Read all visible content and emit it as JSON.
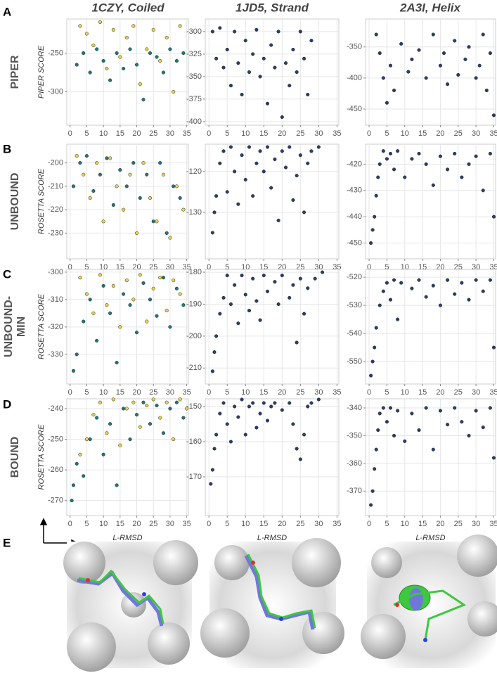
{
  "column_titles": [
    "1CZY, Coiled",
    "1JD5, Strand",
    "2A3I, Helix"
  ],
  "row_labels": [
    [
      "PIPER"
    ],
    [
      "UNBOUND"
    ],
    [
      "UNBOUND-",
      "MIN"
    ],
    [
      "BOUND"
    ]
  ],
  "panel_labels": [
    "A",
    "B",
    "C",
    "D",
    "E"
  ],
  "chart_data": [
    {
      "type": "scatter",
      "ylabel": "PIPER SCORE",
      "xlim": [
        -1,
        35.5
      ],
      "xticks": [
        0,
        5,
        10,
        15,
        20,
        25,
        30,
        35
      ],
      "ylim": [
        -343,
        -206
      ],
      "yticks": [
        -250,
        -300
      ],
      "grid": true,
      "series": [
        {
          "color": "#e8d44d",
          "x": [
            3,
            5,
            7,
            9,
            11,
            13,
            15,
            17,
            19,
            21,
            23,
            25,
            27,
            29,
            31,
            33
          ],
          "values": [
            -215,
            -225,
            -240,
            -210,
            -270,
            -220,
            -255,
            -230,
            -215,
            -290,
            -245,
            -220,
            -260,
            -230,
            -300,
            -215
          ]
        },
        {
          "color": "#217a78",
          "x": [
            2,
            4,
            6,
            8,
            10,
            12,
            14,
            16,
            18,
            20,
            22,
            24,
            26,
            28,
            30,
            32,
            34
          ],
          "values": [
            -265,
            -250,
            -275,
            -245,
            -260,
            -285,
            -250,
            -270,
            -245,
            -265,
            -310,
            -250,
            -255,
            -275,
            -245,
            -260,
            -250
          ]
        }
      ]
    },
    {
      "type": "scatter",
      "xlim": [
        -1,
        35.5
      ],
      "xticks": [
        0,
        5,
        10,
        15,
        20,
        25,
        30,
        35
      ],
      "ylim": [
        -404,
        -286
      ],
      "yticks": [
        -300,
        -325,
        -350,
        -375,
        -400
      ],
      "grid": true,
      "series": [
        {
          "color": "#2b3f6b",
          "x": [
            1,
            2,
            3,
            4,
            5,
            6,
            7,
            8,
            9,
            10,
            11,
            12,
            13,
            14,
            15,
            16,
            17,
            18,
            19,
            20,
            21,
            22,
            23,
            24,
            25,
            26,
            27,
            28
          ],
          "values": [
            -300,
            -330,
            -296,
            -340,
            -320,
            -360,
            -300,
            -335,
            -370,
            -310,
            -345,
            -325,
            -298,
            -350,
            -330,
            -380,
            -315,
            -340,
            -300,
            -395,
            -335,
            -360,
            -320,
            -345,
            -300,
            -330,
            -370,
            -310
          ]
        }
      ]
    },
    {
      "type": "scatter",
      "xlim": [
        -1,
        35.5
      ],
      "xticks": [
        0,
        5,
        10,
        15,
        20,
        25,
        30,
        35
      ],
      "ylim": [
        -476,
        -305
      ],
      "yticks": [
        -350,
        -400,
        -450
      ],
      "grid": true,
      "series": [
        {
          "color": "#2b3f6b",
          "x": [
            2,
            3,
            4,
            5,
            6,
            7,
            9,
            11,
            12,
            14,
            16,
            18,
            20,
            21,
            22,
            24,
            25,
            27,
            28,
            30,
            31,
            32,
            33,
            34,
            35
          ],
          "values": [
            -330,
            -360,
            -400,
            -440,
            -380,
            -420,
            -345,
            -390,
            -370,
            -355,
            -400,
            -330,
            -380,
            -360,
            -410,
            -340,
            -395,
            -370,
            -350,
            -400,
            -380,
            -330,
            -420,
            -360,
            -460
          ]
        }
      ]
    },
    {
      "type": "scatter",
      "ylabel": "ROSETTA SCORE",
      "xlim": [
        -1,
        35.5
      ],
      "xticks": [
        0,
        5,
        10,
        15,
        20,
        25,
        30,
        35
      ],
      "ylim": [
        -241,
        -192
      ],
      "yticks": [
        -200,
        -210,
        -220,
        -230
      ],
      "grid": true,
      "series": [
        {
          "color": "#e8d44d",
          "x": [
            2,
            4,
            6,
            8,
            10,
            12,
            14,
            16,
            18,
            20,
            22,
            24,
            26,
            28,
            30,
            32,
            34
          ],
          "values": [
            -197,
            -205,
            -215,
            -200,
            -225,
            -198,
            -210,
            -220,
            -205,
            -230,
            -200,
            -215,
            -225,
            -205,
            -232,
            -210,
            -220
          ]
        },
        {
          "color": "#217a78",
          "x": [
            1,
            3,
            5,
            7,
            9,
            11,
            13,
            15,
            17,
            19,
            21,
            23,
            25,
            27,
            29,
            31,
            33
          ],
          "values": [
            -210,
            -200,
            -197,
            -212,
            -205,
            -198,
            -218,
            -203,
            -210,
            -200,
            -215,
            -205,
            -225,
            -200,
            -230,
            -210,
            -215
          ]
        }
      ]
    },
    {
      "type": "scatter",
      "xlim": [
        -1,
        35.5
      ],
      "xticks": [
        0,
        5,
        10,
        15,
        20,
        25,
        30,
        35
      ],
      "ylim": [
        -141.4,
        -113.3
      ],
      "yticks": [
        -120,
        -130
      ],
      "grid": true,
      "series": [
        {
          "color": "#2b3f6b",
          "x": [
            1,
            1.5,
            2,
            3,
            4,
            5,
            6,
            7,
            8,
            9,
            10,
            11,
            12,
            13,
            14,
            15,
            16,
            17,
            18,
            19,
            20,
            21,
            22,
            23,
            24,
            25,
            26,
            27,
            28,
            30
          ],
          "values": [
            -135,
            -130,
            -126,
            -118,
            -115,
            -125,
            -114,
            -120,
            -128,
            -116,
            -122,
            -114,
            -126,
            -118,
            -115,
            -120,
            -114,
            -124,
            -117,
            -132,
            -115,
            -119,
            -114,
            -127,
            -121,
            -116,
            -130,
            -118,
            -115,
            -114
          ]
        }
      ]
    },
    {
      "type": "scatter",
      "xlim": [
        -1,
        35.5
      ],
      "xticks": [
        0,
        5,
        10,
        15,
        20,
        25,
        30,
        35
      ],
      "ylim": [
        -456,
        -412.4
      ],
      "yticks": [
        -420,
        -430,
        -440,
        -450
      ],
      "grid": true,
      "series": [
        {
          "color": "#2b3f6b",
          "x": [
            0.5,
            1,
            1.5,
            2,
            2.5,
            3,
            4,
            5,
            6,
            7,
            8,
            10,
            12,
            14,
            16,
            18,
            20,
            22,
            24,
            26,
            28,
            30,
            32,
            34,
            35
          ],
          "values": [
            -450,
            -445,
            -440,
            -432,
            -425,
            -420,
            -415,
            -418,
            -416,
            -422,
            -415,
            -425,
            -418,
            -416,
            -420,
            -428,
            -417,
            -422,
            -416,
            -425,
            -420,
            -417,
            -430,
            -416,
            -440
          ]
        }
      ]
    },
    {
      "type": "scatter",
      "ylabel": "ROSETTA SCORE",
      "xlim": [
        -1,
        35.5
      ],
      "xticks": [
        0,
        5,
        10,
        15,
        20,
        25,
        30,
        35
      ],
      "ylim": [
        -340.8,
        -299
      ],
      "yticks": [
        -300,
        -310,
        -320,
        -330
      ],
      "grid": true,
      "series": [
        {
          "color": "#e8d44d",
          "x": [
            3,
            5,
            7,
            9,
            11,
            13,
            15,
            17,
            19,
            21,
            23,
            25,
            27,
            29,
            31,
            33
          ],
          "values": [
            -302,
            -308,
            -315,
            -301,
            -312,
            -305,
            -320,
            -303,
            -310,
            -301,
            -318,
            -306,
            -302,
            -314,
            -303,
            -308
          ]
        },
        {
          "color": "#217a78",
          "x": [
            1,
            2,
            4,
            6,
            8,
            10,
            12,
            14,
            16,
            18,
            20,
            22,
            24,
            26,
            28,
            30,
            32,
            34
          ],
          "values": [
            -336,
            -330,
            -318,
            -310,
            -325,
            -305,
            -315,
            -333,
            -308,
            -312,
            -322,
            -304,
            -310,
            -316,
            -302,
            -320,
            -306,
            -312
          ]
        }
      ]
    },
    {
      "type": "scatter",
      "xlim": [
        -1,
        35.5
      ],
      "xticks": [
        0,
        5,
        10,
        15,
        20,
        25,
        30,
        35
      ],
      "ylim": [
        -215,
        -179.1
      ],
      "yticks": [
        -180,
        -190,
        -200,
        -210
      ],
      "grid": true,
      "series": [
        {
          "color": "#2b3f6b",
          "x": [
            1,
            1.5,
            2,
            3,
            4,
            5,
            6,
            7,
            8,
            9,
            10,
            11,
            12,
            13,
            14,
            15,
            16,
            18,
            19,
            20,
            22,
            23,
            24,
            25,
            26,
            27,
            29,
            31
          ],
          "values": [
            -211,
            -205,
            -200,
            -193,
            -188,
            -181,
            -190,
            -184,
            -196,
            -181,
            -187,
            -192,
            -182,
            -189,
            -195,
            -181,
            -186,
            -183,
            -190,
            -181,
            -188,
            -184,
            -202,
            -182,
            -193,
            -185,
            -182,
            -180
          ]
        }
      ]
    },
    {
      "type": "scatter",
      "xlim": [
        -1,
        35.5
      ],
      "xticks": [
        0,
        5,
        10,
        15,
        20,
        25,
        30,
        35
      ],
      "ylim": [
        -558,
        -517.2
      ],
      "yticks": [
        -520,
        -530,
        -540,
        -550
      ],
      "grid": true,
      "series": [
        {
          "color": "#2b3f6b",
          "x": [
            0.5,
            1,
            1.5,
            2,
            3,
            4,
            5,
            6,
            7,
            8,
            9,
            12,
            14,
            16,
            18,
            20,
            22,
            24,
            26,
            28,
            30,
            32,
            34,
            35
          ],
          "values": [
            -555,
            -550,
            -545,
            -538,
            -530,
            -525,
            -522,
            -528,
            -521,
            -535,
            -522,
            -524,
            -521,
            -527,
            -523,
            -530,
            -521,
            -526,
            -522,
            -528,
            -521,
            -525,
            -521,
            -545
          ]
        }
      ]
    },
    {
      "type": "scatter",
      "ylabel": "ROSETTA SCORE",
      "xlabel": "L-RMSD",
      "xlim": [
        -1,
        35.5
      ],
      "xticks": [
        0,
        5,
        10,
        15,
        20,
        25,
        30,
        35
      ],
      "ylim": [
        -274.9,
        -236.8
      ],
      "yticks": [
        -240,
        -250,
        -260,
        -270
      ],
      "grid": true,
      "series": [
        {
          "color": "#e8d44d",
          "x": [
            3,
            5,
            7,
            9,
            11,
            13,
            15,
            17,
            19,
            21,
            23,
            25,
            27,
            29,
            31,
            33,
            35
          ],
          "values": [
            -255,
            -250,
            -242,
            -238,
            -248,
            -237,
            -252,
            -240,
            -238,
            -246,
            -239,
            -237,
            -243,
            -238,
            -250,
            -237,
            -240
          ]
        },
        {
          "color": "#217a78",
          "x": [
            0.5,
            1,
            2,
            4,
            6,
            8,
            10,
            12,
            14,
            16,
            18,
            20,
            22,
            24,
            26,
            28,
            30,
            32,
            34
          ],
          "values": [
            -270,
            -265,
            -258,
            -262,
            -250,
            -243,
            -255,
            -245,
            -265,
            -240,
            -250,
            -242,
            -238,
            -245,
            -239,
            -248,
            -240,
            -238,
            -243
          ]
        }
      ]
    },
    {
      "type": "scatter",
      "xlabel": "L-RMSD",
      "xlim": [
        -1,
        35.5
      ],
      "xticks": [
        0,
        5,
        10,
        15,
        20,
        25,
        30,
        35
      ],
      "ylim": [
        -181,
        -147.8
      ],
      "yticks": [
        -150,
        -160,
        -170
      ],
      "grid": true,
      "series": [
        {
          "color": "#2b3f6b",
          "x": [
            0.5,
            1,
            1.5,
            2,
            3,
            4,
            5,
            6,
            7,
            8,
            9,
            10,
            11,
            12,
            13,
            14,
            15,
            16,
            17,
            18,
            20,
            22,
            23,
            24,
            25,
            26,
            27,
            28,
            30
          ],
          "values": [
            -172,
            -168,
            -162,
            -158,
            -152,
            -149,
            -155,
            -160,
            -150,
            -153,
            -148,
            -158,
            -150,
            -149,
            -156,
            -152,
            -149,
            -154,
            -150,
            -149,
            -151,
            -149,
            -155,
            -162,
            -165,
            -158,
            -150,
            -149,
            -148
          ]
        }
      ]
    },
    {
      "type": "scatter",
      "xlabel": "L-RMSD",
      "xlim": [
        -1,
        35.5
      ],
      "xticks": [
        0,
        5,
        10,
        15,
        20,
        25,
        30,
        35
      ],
      "ylim": [
        -378.8,
        -336.7
      ],
      "yticks": [
        -340,
        -350,
        -360,
        -370
      ],
      "grid": true,
      "series": [
        {
          "color": "#2b3f6b",
          "x": [
            0.5,
            1,
            1.5,
            2,
            2.5,
            3,
            4,
            5,
            6,
            7,
            8,
            10,
            12,
            14,
            16,
            18,
            20,
            22,
            24,
            26,
            28,
            30,
            32,
            34,
            35
          ],
          "values": [
            -375,
            -370,
            -362,
            -355,
            -348,
            -342,
            -340,
            -345,
            -340,
            -350,
            -341,
            -352,
            -342,
            -348,
            -340,
            -355,
            -341,
            -346,
            -340,
            -345,
            -350,
            -341,
            -347,
            -340,
            -358
          ]
        }
      ]
    }
  ]
}
